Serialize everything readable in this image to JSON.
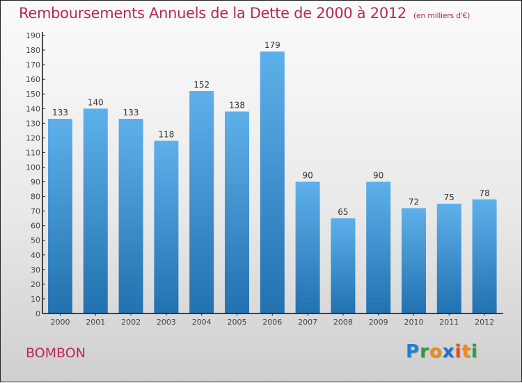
{
  "header": {
    "title": "Remboursements Annuels de la Dette de 2000 à 2012",
    "unit": "(en milliers d'€)"
  },
  "footer": {
    "commune": "BOMBON",
    "logo": {
      "letters": [
        {
          "char": "P",
          "color": "#1e7fd6"
        },
        {
          "char": "r",
          "color": "#2a9d3a"
        },
        {
          "char": "o",
          "color": "#f08a12"
        },
        {
          "char": "x",
          "color": "#1e6fc8"
        },
        {
          "char": "i",
          "color": "#e84b1a"
        },
        {
          "char": "t",
          "color": "#f08a12"
        },
        {
          "char": "i",
          "color": "#2a9d3a"
        }
      ]
    }
  },
  "colors": {
    "title": "#b8275a",
    "bar_top": "#5eb0ea",
    "bar_bottom": "#2271b0"
  },
  "chart_data": {
    "type": "bar",
    "title": "Remboursements Annuels de la Dette de 2000 à 2012",
    "subtitle": "(en milliers d'€)",
    "xlabel": "",
    "ylabel": "",
    "categories": [
      "2000",
      "2001",
      "2002",
      "2003",
      "2004",
      "2005",
      "2006",
      "2007",
      "2008",
      "2009",
      "2010",
      "2011",
      "2012"
    ],
    "values": [
      133,
      140,
      133,
      118,
      152,
      138,
      179,
      90,
      65,
      90,
      72,
      75,
      78
    ],
    "ylim": [
      0,
      190
    ],
    "yticks": [
      0,
      10,
      20,
      30,
      40,
      50,
      60,
      70,
      80,
      90,
      100,
      110,
      120,
      130,
      140,
      150,
      160,
      170,
      180,
      190
    ],
    "grid": false,
    "legend": "none"
  }
}
